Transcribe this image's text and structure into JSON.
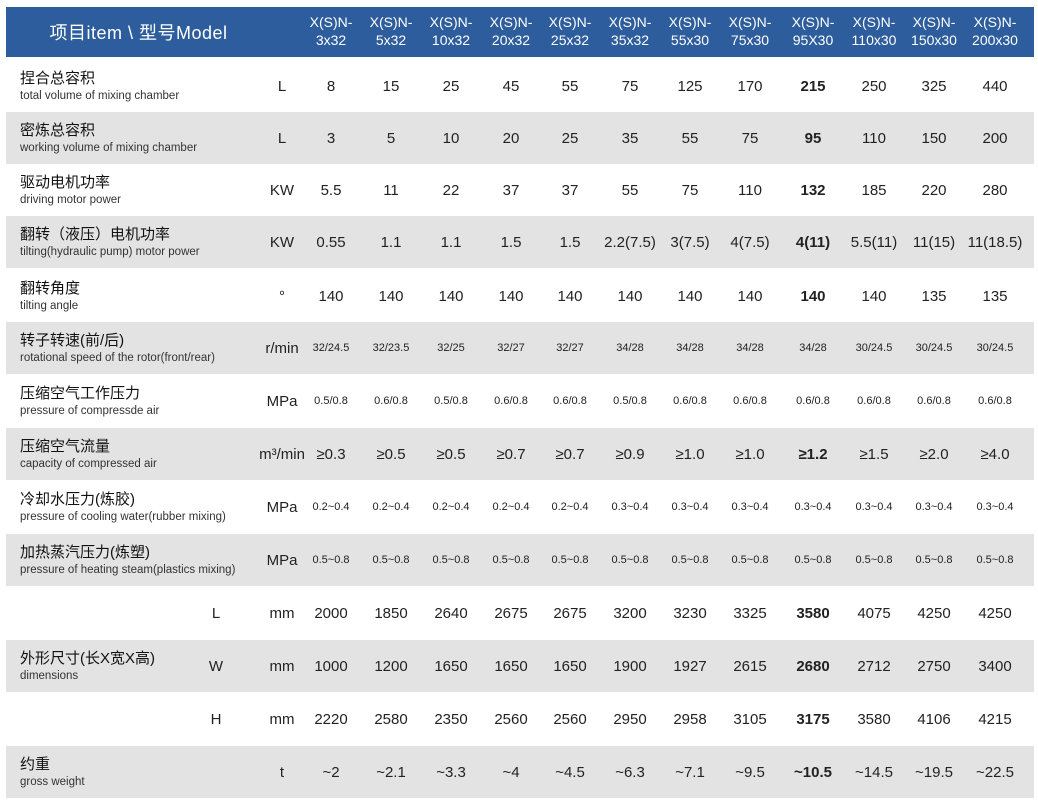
{
  "header": {
    "title": "项目item   \\   型号Model",
    "models": [
      [
        "X(S)N-",
        "3x32"
      ],
      [
        "X(S)N-",
        "5x32"
      ],
      [
        "X(S)N-",
        "10x32"
      ],
      [
        "X(S)N-",
        "20x32"
      ],
      [
        "X(S)N-",
        "25x32"
      ],
      [
        "X(S)N-",
        "35x32"
      ],
      [
        "X(S)N-",
        "55x30"
      ],
      [
        "X(S)N-",
        "75x30"
      ],
      [
        "X(S)N-",
        "95X30"
      ],
      [
        "X(S)N-",
        "110x30"
      ],
      [
        "X(S)N-",
        "150x30"
      ],
      [
        "X(S)N-",
        "200x30"
      ]
    ]
  },
  "rows": [
    {
      "zh": "捏合总容积",
      "en": "total volume of mixing chamber",
      "unit": "L",
      "values": [
        "8",
        "15",
        "25",
        "45",
        "55",
        "75",
        "125",
        "170",
        "215",
        "250",
        "325",
        "440"
      ]
    },
    {
      "zh": "密炼总容积",
      "en": "working volume of mixing chamber",
      "unit": "L",
      "values": [
        "3",
        "5",
        "10",
        "20",
        "25",
        "35",
        "55",
        "75",
        "95",
        "110",
        "150",
        "200"
      ]
    },
    {
      "zh": "驱动电机功率",
      "en": "driving motor power",
      "unit": "KW",
      "values": [
        "5.5",
        "11",
        "22",
        "37",
        "37",
        "55",
        "75",
        "110",
        "132",
        "185",
        "220",
        "280"
      ]
    },
    {
      "zh": "翻转（液压）电机功率",
      "en": "tilting(hydraulic pump) motor power",
      "unit": "KW",
      "values": [
        "0.55",
        "1.1",
        "1.1",
        "1.5",
        "1.5",
        "2.2(7.5)",
        "3(7.5)",
        "4(7.5)",
        "4(11)",
        "5.5(11)",
        "11(15)",
        "11(18.5)"
      ]
    },
    {
      "zh": "翻转角度",
      "en": "tilting angle",
      "unit": "°",
      "values": [
        "140",
        "140",
        "140",
        "140",
        "140",
        "140",
        "140",
        "140",
        "140",
        "140",
        "135",
        "135"
      ]
    },
    {
      "zh": "转子转速(前/后)",
      "en": "rotational speed of the rotor(front/rear)",
      "unit": "r/min",
      "small": true,
      "values": [
        "32/24.5",
        "32/23.5",
        "32/25",
        "32/27",
        "32/27",
        "34/28",
        "34/28",
        "34/28",
        "34/28",
        "30/24.5",
        "30/24.5",
        "30/24.5"
      ]
    },
    {
      "zh": "压缩空气工作压力",
      "en": "pressure of compressde air",
      "unit": "MPa",
      "small": true,
      "values": [
        "0.5/0.8",
        "0.6/0.8",
        "0.5/0.8",
        "0.6/0.8",
        "0.6/0.8",
        "0.5/0.8",
        "0.6/0.8",
        "0.6/0.8",
        "0.6/0.8",
        "0.6/0.8",
        "0.6/0.8",
        "0.6/0.8"
      ]
    },
    {
      "zh": "压缩空气流量",
      "en": "capacity of compressed air",
      "unit": "m³/min",
      "values": [
        "≥0.3",
        "≥0.5",
        "≥0.5",
        "≥0.7",
        "≥0.7",
        "≥0.9",
        "≥1.0",
        "≥1.0",
        "≥1.2",
        "≥1.5",
        "≥2.0",
        "≥4.0"
      ]
    },
    {
      "zh": "冷却水压力(炼胶)",
      "en": "pressure of cooling water(rubber mixing)",
      "unit": "MPa",
      "small": true,
      "values": [
        "0.2~0.4",
        "0.2~0.4",
        "0.2~0.4",
        "0.2~0.4",
        "0.2~0.4",
        "0.3~0.4",
        "0.3~0.4",
        "0.3~0.4",
        "0.3~0.4",
        "0.3~0.4",
        "0.3~0.4",
        "0.3~0.4"
      ]
    },
    {
      "zh": "加热蒸汽压力(炼塑)",
      "en": "pressure of heating steam(plastics mixing)",
      "unit": "MPa",
      "small": true,
      "values": [
        "0.5~0.8",
        "0.5~0.8",
        "0.5~0.8",
        "0.5~0.8",
        "0.5~0.8",
        "0.5~0.8",
        "0.5~0.8",
        "0.5~0.8",
        "0.5~0.8",
        "0.5~0.8",
        "0.5~0.8",
        "0.5~0.8"
      ]
    }
  ],
  "dimensions": {
    "zh": "外形尺寸(长X宽X高)",
    "en": "dimensions",
    "subrows": [
      {
        "sub": "L",
        "unit": "mm",
        "values": [
          "2000",
          "1850",
          "2640",
          "2675",
          "2675",
          "3200",
          "3230",
          "3325",
          "3580",
          "4075",
          "4250",
          "4250"
        ]
      },
      {
        "sub": "W",
        "unit": "mm",
        "values": [
          "1000",
          "1200",
          "1650",
          "1650",
          "1650",
          "1900",
          "1927",
          "2615",
          "2680",
          "2712",
          "2750",
          "3400"
        ]
      },
      {
        "sub": "H",
        "unit": "mm",
        "values": [
          "2220",
          "2580",
          "2350",
          "2560",
          "2560",
          "2950",
          "2958",
          "3105",
          "3175",
          "3580",
          "4106",
          "4215"
        ]
      }
    ]
  },
  "weight": {
    "zh": "约重",
    "en": "gross weight",
    "unit": "t",
    "values": [
      "~2",
      "~2.1",
      "~3.3",
      "~4",
      "~4.5",
      "~6.3",
      "~7.1",
      "~9.5",
      "~10.5",
      "~14.5",
      "~19.5",
      "~22.5"
    ]
  }
}
